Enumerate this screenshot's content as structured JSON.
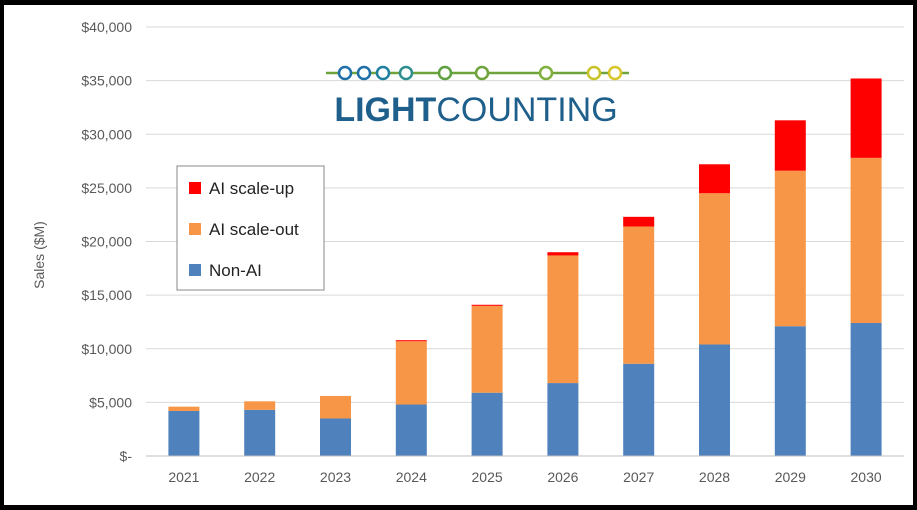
{
  "chart_data": {
    "type": "bar",
    "stacked": true,
    "categories": [
      "2021",
      "2022",
      "2023",
      "2024",
      "2025",
      "2026",
      "2027",
      "2028",
      "2029",
      "2030"
    ],
    "series": [
      {
        "name": "Non-AI",
        "color": "#4F81BD",
        "values": [
          4200,
          4300,
          3500,
          4800,
          5900,
          6800,
          8600,
          10400,
          12100,
          12400
        ]
      },
      {
        "name": "AI scale-out",
        "color": "#F79646",
        "values": [
          400,
          800,
          2100,
          5900,
          8100,
          11900,
          12800,
          14100,
          14500,
          15400
        ]
      },
      {
        "name": "AI scale-up",
        "color": "#FF0000",
        "values": [
          0,
          0,
          0,
          100,
          100,
          300,
          900,
          2700,
          4700,
          7400
        ]
      }
    ],
    "ylabel": "Sales ($M)",
    "ylim": [
      0,
      40000
    ],
    "y_ticks": [
      "$-",
      "$5,000",
      "$10,000",
      "$15,000",
      "$20,000",
      "$25,000",
      "$30,000",
      "$35,000",
      "$40,000"
    ],
    "grid": true,
    "legend_position": "left",
    "legend_order": [
      "AI scale-up",
      "AI scale-out",
      "Non-AI"
    ]
  },
  "logo": {
    "text_light": "LIGHT",
    "text_counting": "COUNTING",
    "color": "#1F5F8B"
  }
}
